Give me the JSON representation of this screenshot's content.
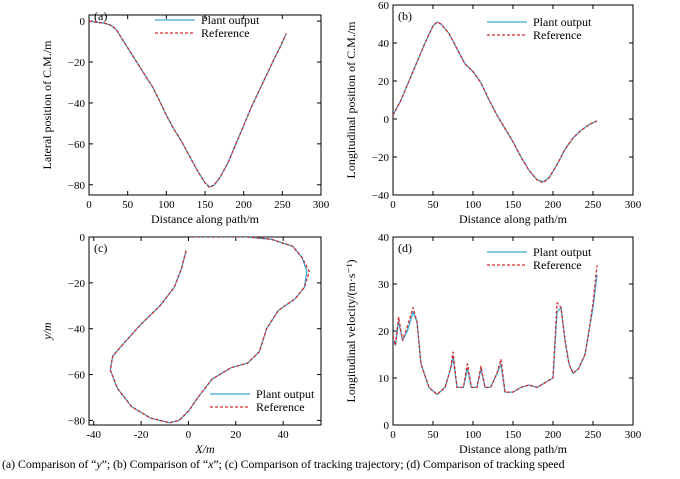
{
  "figure": {
    "caption_parts": [
      {
        "text": "(a)  Comparison  of  “",
        "italic": false
      },
      {
        "text": "y",
        "italic": true
      },
      {
        "text": "”; (b) Comparison of “",
        "italic": false
      },
      {
        "text": "x",
        "italic": true
      },
      {
        "text": "”; (c) Comparison of tracking trajectory; (d) Comparison of tracking speed",
        "italic": false
      }
    ]
  },
  "colors": {
    "plant": "#3fa7d6",
    "reference": "#d42a2a",
    "axis": "#000000"
  },
  "chart_data": [
    {
      "panel": "(a)",
      "type": "line",
      "title": "",
      "xlabel": "Distance along path/m",
      "ylabel": "Lateral position of C.M./m",
      "xlim": [
        0,
        300
      ],
      "ylim": [
        -85,
        3
      ],
      "xticks": [
        0,
        50,
        100,
        150,
        200,
        250,
        300
      ],
      "yticks": [
        0,
        -20,
        -40,
        -60,
        -80
      ],
      "grid": false,
      "legend_position": "top-center",
      "series": [
        {
          "name": "Plant output",
          "style": "solid",
          "color_key": "plant",
          "x": [
            0,
            10,
            20,
            28,
            35,
            45,
            55,
            65,
            75,
            82,
            90,
            100,
            110,
            120,
            130,
            140,
            150,
            156,
            162,
            170,
            180,
            190,
            200,
            210,
            220,
            230,
            240,
            248,
            255
          ],
          "y": [
            0,
            -0.5,
            -1,
            -2,
            -4,
            -10,
            -16,
            -22,
            -28,
            -32,
            -38,
            -46,
            -53,
            -59,
            -66,
            -73,
            -79,
            -81,
            -80,
            -76,
            -69,
            -60,
            -51,
            -42,
            -34,
            -26,
            -18,
            -12,
            -6
          ]
        },
        {
          "name": "Reference",
          "style": "dashed",
          "color_key": "reference",
          "x": [
            0,
            10,
            20,
            28,
            35,
            45,
            55,
            65,
            75,
            82,
            90,
            100,
            110,
            120,
            130,
            140,
            150,
            156,
            162,
            170,
            180,
            190,
            200,
            210,
            220,
            230,
            240,
            248,
            255
          ],
          "y": [
            0,
            -0.5,
            -1,
            -2,
            -4,
            -10,
            -16,
            -22,
            -28,
            -32,
            -38,
            -46,
            -53,
            -59,
            -66,
            -73,
            -79,
            -81.5,
            -80,
            -76,
            -69,
            -60,
            -51,
            -42,
            -34,
            -26,
            -18,
            -12,
            -6
          ]
        }
      ]
    },
    {
      "panel": "(b)",
      "type": "line",
      "title": "",
      "xlabel": "Distance along path/m",
      "ylabel": "Longitudinal position of C.M./m",
      "xlim": [
        0,
        300
      ],
      "ylim": [
        -40,
        60
      ],
      "xticks": [
        0,
        50,
        100,
        150,
        200,
        250,
        300
      ],
      "yticks": [
        60,
        40,
        20,
        0,
        -20,
        -40
      ],
      "grid": false,
      "legend_position": "top-right",
      "series": [
        {
          "name": "Plant output",
          "style": "solid",
          "color_key": "plant",
          "x": [
            0,
            10,
            20,
            30,
            40,
            50,
            55,
            60,
            70,
            80,
            90,
            100,
            110,
            120,
            130,
            140,
            150,
            160,
            170,
            180,
            188,
            195,
            205,
            215,
            225,
            235,
            245,
            255
          ],
          "y": [
            2,
            10,
            20,
            30,
            40,
            49,
            51,
            50,
            45,
            37,
            29,
            25,
            19,
            10,
            2,
            -5,
            -12,
            -20,
            -27,
            -32,
            -33,
            -31,
            -24,
            -16,
            -10,
            -6,
            -3,
            -1
          ]
        },
        {
          "name": "Reference",
          "style": "dashed",
          "color_key": "reference",
          "x": [
            0,
            10,
            20,
            30,
            40,
            50,
            55,
            60,
            70,
            80,
            90,
            100,
            110,
            120,
            130,
            140,
            150,
            160,
            170,
            180,
            188,
            195,
            205,
            215,
            225,
            235,
            245,
            255
          ],
          "y": [
            2,
            10,
            20,
            30,
            40,
            49,
            51,
            50,
            45,
            37,
            29,
            25,
            19,
            10,
            2,
            -5,
            -12,
            -20,
            -27,
            -32,
            -33.5,
            -31,
            -24,
            -16,
            -10,
            -6,
            -3,
            -1
          ]
        }
      ]
    },
    {
      "panel": "(c)",
      "type": "line",
      "title": "",
      "xlabel": "X/m",
      "ylabel": "y/m",
      "xlim": [
        -42,
        56
      ],
      "ylim": [
        -82,
        0
      ],
      "xticks": [
        -40,
        -20,
        0,
        20,
        40
      ],
      "yticks": [
        0,
        -20,
        -40,
        -60,
        -80
      ],
      "grid": false,
      "legend_position": "bottom-right",
      "series": [
        {
          "name": "Plant output",
          "style": "solid",
          "color_key": "plant",
          "x": [
            -1,
            -3,
            -6,
            -12,
            -20,
            -27,
            -32,
            -33,
            -30,
            -24,
            -16,
            -8,
            -4,
            0,
            4,
            10,
            18,
            25,
            30,
            33,
            38,
            45,
            49,
            50,
            48,
            44,
            35,
            25,
            15,
            8,
            3,
            1
          ],
          "y": [
            -6,
            -14,
            -22,
            -30,
            -38,
            -46,
            -52,
            -58,
            -66,
            -74,
            -79,
            -81,
            -80,
            -76,
            -70,
            -62,
            -57,
            -55,
            -50,
            -40,
            -32,
            -27,
            -22,
            -15,
            -9,
            -4,
            -1,
            0,
            0,
            0,
            0,
            0
          ]
        },
        {
          "name": "Reference",
          "style": "dashed",
          "color_key": "reference",
          "x": [
            -1,
            -3,
            -6,
            -12,
            -20,
            -27,
            -32,
            -33,
            -30,
            -24,
            -16,
            -8,
            -4,
            0,
            4,
            10,
            18,
            25,
            30,
            33,
            38,
            45,
            49,
            51,
            48,
            44,
            35,
            25,
            15,
            8,
            3,
            1
          ],
          "y": [
            -6,
            -14,
            -22,
            -30,
            -38,
            -46,
            -52,
            -58,
            -66,
            -74,
            -79,
            -81,
            -80,
            -76,
            -70,
            -62,
            -57,
            -55,
            -50,
            -40,
            -32,
            -27,
            -22,
            -15,
            -9,
            -4,
            -1,
            0,
            0,
            0,
            0,
            0
          ]
        }
      ]
    },
    {
      "panel": "(d)",
      "type": "line",
      "title": "",
      "xlabel": "Distance along path/m",
      "ylabel": "Longitudinal velocity/(m·s⁻¹)",
      "xlim": [
        0,
        300
      ],
      "ylim": [
        0,
        40
      ],
      "xticks": [
        0,
        50,
        100,
        150,
        200,
        250,
        300
      ],
      "yticks": [
        0,
        10,
        20,
        30,
        40
      ],
      "grid": false,
      "legend_position": "top-center",
      "series": [
        {
          "name": "Plant output",
          "style": "solid",
          "color_key": "plant",
          "x": [
            0,
            3,
            7,
            12,
            18,
            25,
            30,
            35,
            45,
            55,
            65,
            72,
            75,
            80,
            88,
            93,
            98,
            105,
            110,
            115,
            122,
            130,
            135,
            140,
            150,
            160,
            170,
            180,
            190,
            200,
            205,
            210,
            215,
            220,
            225,
            232,
            240,
            245,
            250,
            255
          ],
          "y": [
            18,
            17,
            22,
            18,
            20,
            24,
            22,
            13,
            8,
            6.5,
            8,
            12,
            14.5,
            8,
            8,
            12,
            8,
            8,
            12,
            8,
            8,
            11,
            13,
            7,
            7,
            8,
            8.5,
            8,
            9,
            10,
            24,
            25,
            18,
            13,
            11,
            12,
            15,
            20,
            25,
            32
          ]
        },
        {
          "name": "Reference",
          "style": "dashed",
          "color_key": "reference",
          "x": [
            0,
            3,
            7,
            12,
            18,
            25,
            30,
            35,
            45,
            55,
            65,
            72,
            75,
            80,
            88,
            93,
            98,
            105,
            110,
            115,
            122,
            130,
            135,
            140,
            150,
            160,
            170,
            180,
            190,
            200,
            205,
            210,
            215,
            220,
            225,
            232,
            240,
            245,
            250,
            255
          ],
          "y": [
            19,
            17,
            23,
            18,
            21,
            25,
            22,
            13,
            8,
            6.5,
            8,
            12,
            15.5,
            8,
            8,
            13,
            8,
            8,
            12.5,
            8,
            8,
            11,
            14,
            7,
            7,
            8,
            8.5,
            8,
            9,
            10,
            26,
            25,
            18,
            13,
            11,
            12,
            15,
            20,
            26,
            34
          ]
        }
      ]
    }
  ]
}
